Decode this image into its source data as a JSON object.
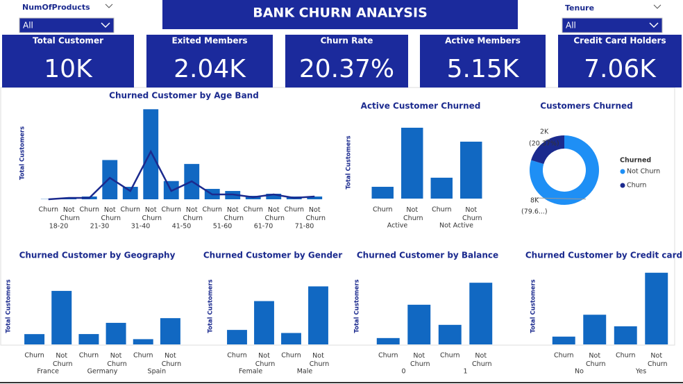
{
  "header": {
    "title": "BANK CHURN ANALYSIS"
  },
  "slicers": [
    {
      "label": "NumOfProducts",
      "value": "All"
    },
    {
      "label": "Tenure",
      "value": "All"
    }
  ],
  "cards": [
    {
      "label": "Total Customer",
      "value": "10K"
    },
    {
      "label": "Exited Members",
      "value": "2.04K"
    },
    {
      "label": "Churn Rate",
      "value": "20.37%"
    },
    {
      "label": "Active Members",
      "value": "5.15K"
    },
    {
      "label": "Credit Card Holders",
      "value": "7.06K"
    }
  ],
  "chart_data": [
    {
      "type": "bar",
      "title": "Churned Customer by Age Band",
      "y_label": "Total Customers",
      "categories": [
        "Churn",
        "Not Churn",
        "Churn",
        "Not Churn",
        "Churn",
        "Not Churn",
        "Churn",
        "Not Churn",
        "Churn",
        "Not Churn",
        "Churn",
        "Not Churn",
        "Churn",
        "Not Churn"
      ],
      "groups": [
        "18-20",
        "21-30",
        "31-40",
        "41-50",
        "51-60",
        "61-70",
        "71-80"
      ],
      "series": [
        {
          "color": "#1168c2",
          "values": [
            10,
            40,
            120,
            1700,
            540,
            3900,
            790,
            1530,
            450,
            360,
            150,
            240,
            120,
            120
          ]
        },
        {
          "type": "line",
          "color": "#1b2a8e",
          "values": [
            0,
            60,
            60,
            930,
            360,
            2070,
            360,
            780,
            210,
            210,
            90,
            210,
            60,
            120
          ]
        }
      ],
      "ylim": [
        0,
        4000
      ]
    },
    {
      "type": "bar",
      "title": "Active Customer Churned",
      "y_label": "Total Customers",
      "categories": [
        "Churn",
        "Not Churn",
        "Churn",
        "Not Churn"
      ],
      "groups": [
        "Active",
        "Not Active"
      ],
      "series": [
        {
          "color": "#1168c2",
          "values": [
            735,
            4416,
            1302,
            3547
          ]
        }
      ],
      "ylim": [
        0,
        4500
      ]
    },
    {
      "type": "pie",
      "title": "Customers Churned",
      "legend_title": "Churned",
      "categories": [
        "Not Churn",
        "Churn"
      ],
      "colors": [
        "#1e8ff5",
        "#1b2a8e"
      ],
      "values": [
        7963,
        2037
      ],
      "value_labels": [
        "8K",
        "2K"
      ],
      "percent_labels": [
        "(79.6...)",
        "(20.37%)"
      ]
    },
    {
      "type": "bar",
      "title": "Churned Customer by Geography",
      "y_label": "Total Customers",
      "categories": [
        "Churn",
        "Not Churn",
        "Churn",
        "Not Churn",
        "Churn",
        "Not Churn"
      ],
      "groups": [
        "France",
        "Germany",
        "Spain"
      ],
      "series": [
        {
          "color": "#1168c2",
          "values": [
            810,
            4204,
            814,
            1695,
            413,
            2064
          ]
        }
      ],
      "ylim": [
        0,
        6000
      ]
    },
    {
      "type": "bar",
      "title": "Churned Customer by Gender",
      "y_label": "Total Customers",
      "categories": [
        "Churn",
        "Not Churn",
        "Churn",
        "Not Churn"
      ],
      "groups": [
        "Female",
        "Male"
      ],
      "series": [
        {
          "color": "#1168c2",
          "values": [
            1139,
            3404,
            898,
            4559
          ]
        }
      ],
      "ylim": [
        0,
        6000
      ]
    },
    {
      "type": "bar",
      "title": "Churned Customer by Balance",
      "y_label": "Total Customers",
      "categories": [
        "Churn",
        "Not Churn",
        "Churn",
        "Not Churn"
      ],
      "groups": [
        "0",
        "1"
      ],
      "series": [
        {
          "color": "#1168c2",
          "values": [
            500,
            3117,
            1537,
            4846
          ]
        }
      ],
      "ylim": [
        0,
        6000
      ]
    },
    {
      "type": "bar",
      "title": "Churned Customer by Credit card",
      "y_label": "Total Customers",
      "categories": [
        "Churn",
        "Not Churn",
        "Churn",
        "Not Churn"
      ],
      "groups": [
        "No",
        "Yes"
      ],
      "series": [
        {
          "color": "#1168c2",
          "values": [
            613,
            2332,
            1424,
            5631
          ]
        }
      ],
      "ylim": [
        0,
        6000
      ]
    }
  ]
}
